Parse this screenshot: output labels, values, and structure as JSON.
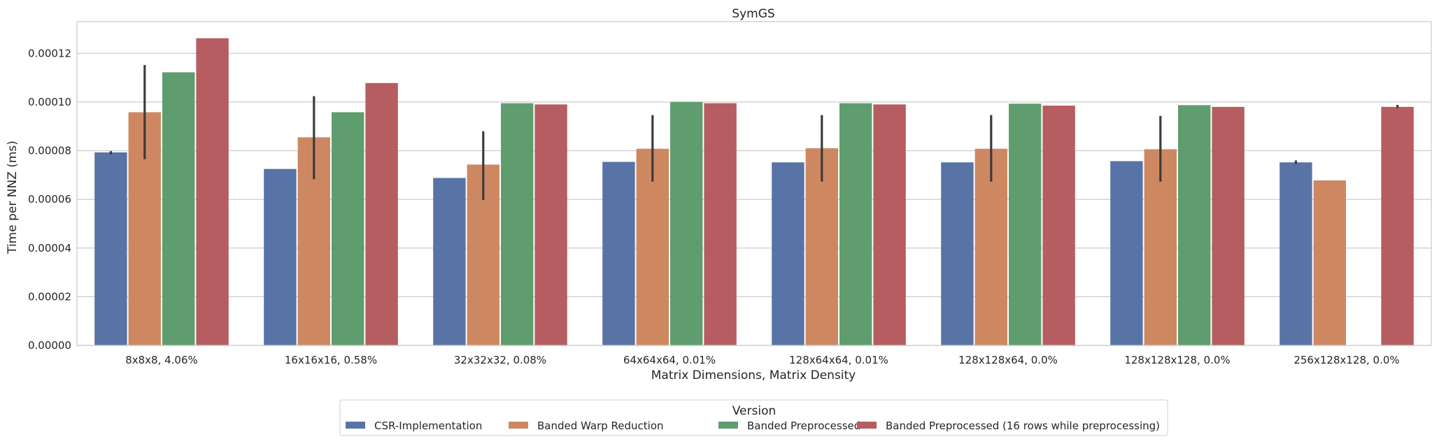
{
  "chart_data": {
    "type": "bar",
    "title": "SymGS",
    "xlabel": "Matrix Dimensions, Matrix Density",
    "ylabel": "Time per NNZ (ms)",
    "ylim": [
      0,
      0.000133
    ],
    "yticks": [
      0,
      2e-05,
      4e-05,
      6e-05,
      8e-05,
      0.0001,
      0.00012
    ],
    "ytick_labels": [
      "0.00000",
      "0.00002",
      "0.00004",
      "0.00006",
      "0.00008",
      "0.00010",
      "0.00012"
    ],
    "grid": "horizontal",
    "categories": [
      "8x8x8, 4.06%",
      "16x16x16, 0.58%",
      "32x32x32, 0.08%",
      "64x64x64, 0.01%",
      "128x64x64, 0.01%",
      "128x128x64, 0.0%",
      "128x128x128, 0.0%",
      "256x128x128, 0.0%"
    ],
    "series": [
      {
        "name": "CSR-Implementation",
        "color": "#5873a6",
        "values": [
          7.93e-05,
          7.25e-05,
          6.88e-05,
          7.54e-05,
          7.52e-05,
          7.52e-05,
          7.57e-05,
          7.52e-05
        ],
        "error": [
          [
            7.85e-05,
            7.98e-05
          ],
          null,
          null,
          null,
          null,
          null,
          null,
          [
            7.45e-05,
            7.6e-05
          ]
        ]
      },
      {
        "name": "Banded Warp Reduction",
        "color": "#ce8861",
        "values": [
          9.58e-05,
          8.55e-05,
          7.43e-05,
          8.08e-05,
          8.1e-05,
          8.08e-05,
          8.06e-05,
          6.78e-05
        ],
        "error": [
          [
            7.65e-05,
            0.0001152
          ],
          [
            6.83e-05,
            0.0001024
          ],
          [
            5.97e-05,
            8.8e-05
          ],
          [
            6.73e-05,
            9.46e-05
          ],
          [
            6.73e-05,
            9.46e-05
          ],
          [
            6.73e-05,
            9.46e-05
          ],
          [
            6.73e-05,
            9.43e-05
          ],
          null
        ]
      },
      {
        "name": "Banded Preprocessed",
        "color": "#5f9d6e",
        "values": [
          0.0001122,
          9.58e-05,
          9.95e-05,
          0.0001,
          9.95e-05,
          9.93e-05,
          9.87e-05,
          null
        ],
        "error": [
          null,
          null,
          null,
          null,
          null,
          null,
          null,
          null
        ]
      },
      {
        "name": "Banded Preprocessed (16 rows while preprocessing)",
        "color": "#b55d60",
        "values": [
          0.0001262,
          0.0001078,
          9.9e-05,
          9.95e-05,
          9.9e-05,
          9.85e-05,
          9.8e-05,
          9.8e-05
        ],
        "error": [
          null,
          null,
          null,
          null,
          null,
          null,
          null,
          [
            9.75e-05,
            9.88e-05
          ]
        ]
      }
    ],
    "legend": {
      "title": "Version",
      "placement": "below the plot, centered"
    }
  }
}
